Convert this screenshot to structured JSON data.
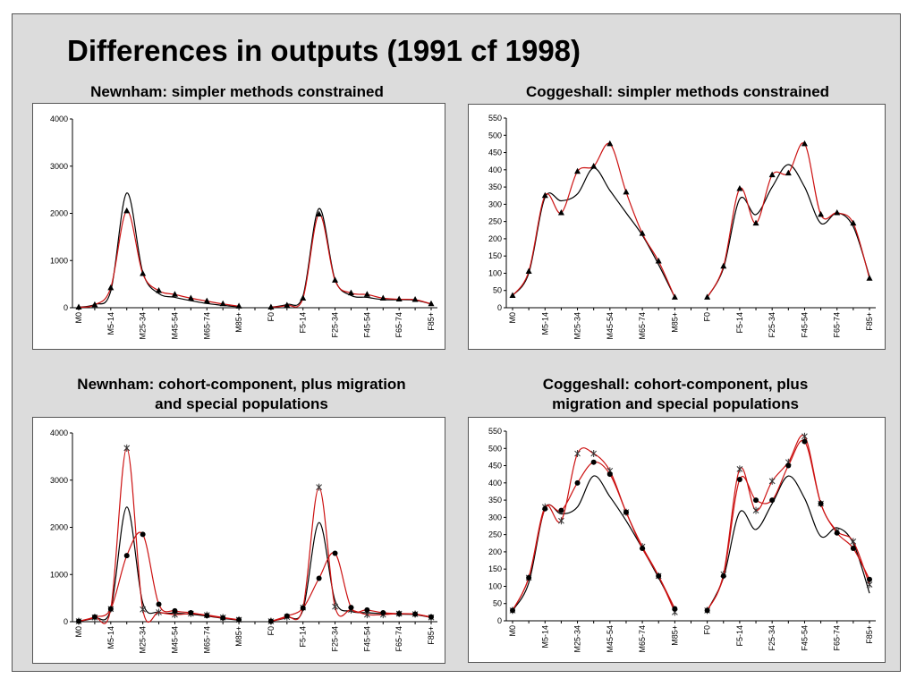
{
  "title": "Differences in outputs (1991 cf 1998)",
  "colors": {
    "black_series": "#000000",
    "red_series": "#cc1111",
    "background": "#dcdcdc"
  },
  "chart_data": [
    {
      "type": "line",
      "title": "Newnham: simpler methods constrained",
      "categories": [
        "M0",
        "",
        "M5-14",
        "",
        "M25-34",
        "",
        "M45-54",
        "",
        "M65-74",
        "",
        "M85+",
        "",
        "F0",
        "",
        "F5-14",
        "",
        "F25-34",
        "",
        "F45-54",
        "",
        "F65-74",
        "",
        "F85+"
      ],
      "ylim": [
        0,
        4000
      ],
      "yticks": [
        0,
        1000,
        2000,
        3000,
        4000
      ],
      "series": [
        {
          "color": "#000000",
          "marker": "none",
          "values": [
            10,
            70,
            350,
            2430,
            750,
            300,
            220,
            150,
            90,
            50,
            20,
            null,
            10,
            70,
            250,
            2100,
            600,
            260,
            220,
            170,
            170,
            160,
            80
          ]
        },
        {
          "color": "#cc1111",
          "marker": "triangle",
          "values": [
            10,
            60,
            420,
            2050,
            720,
            360,
            280,
            200,
            140,
            80,
            30,
            null,
            10,
            50,
            200,
            1980,
            580,
            310,
            280,
            200,
            180,
            170,
            80
          ]
        }
      ]
    },
    {
      "type": "line",
      "title": "Coggeshall: simpler methods constrained",
      "categories": [
        "M0",
        "",
        "M5-14",
        "",
        "M25-34",
        "",
        "M45-54",
        "",
        "M65-74",
        "",
        "M85+",
        "",
        "F0",
        "",
        "F5-14",
        "",
        "F25-34",
        "",
        "F45-54",
        "",
        "F65-74",
        "",
        "F85+"
      ],
      "ylim": [
        0,
        550
      ],
      "yticks": [
        0,
        50,
        100,
        150,
        200,
        250,
        300,
        350,
        400,
        450,
        500,
        550
      ],
      "series": [
        {
          "color": "#000000",
          "marker": "none",
          "values": [
            35,
            100,
            320,
            310,
            330,
            405,
            340,
            275,
            210,
            125,
            30,
            null,
            30,
            115,
            315,
            270,
            350,
            415,
            350,
            245,
            275,
            235,
            90
          ]
        },
        {
          "color": "#cc1111",
          "marker": "triangle",
          "values": [
            35,
            105,
            325,
            275,
            395,
            410,
            475,
            335,
            215,
            135,
            30,
            null,
            30,
            120,
            345,
            245,
            385,
            390,
            475,
            270,
            275,
            245,
            85
          ]
        }
      ]
    },
    {
      "type": "line",
      "title": "Newnham: cohort-component, plus migration and special populations",
      "categories": [
        "M0",
        "",
        "M5-14",
        "",
        "M25-34",
        "",
        "M45-54",
        "",
        "M65-74",
        "",
        "M85+",
        "",
        "F0",
        "",
        "F5-14",
        "",
        "F25-34",
        "",
        "F45-54",
        "",
        "F65-74",
        "",
        "F85+"
      ],
      "ylim": [
        0,
        4000
      ],
      "yticks": [
        0,
        1000,
        2000,
        3000,
        4000
      ],
      "series": [
        {
          "color": "#000000",
          "marker": "none",
          "values": [
            10,
            80,
            260,
            2430,
            400,
            200,
            180,
            160,
            120,
            70,
            30,
            null,
            10,
            90,
            250,
            2100,
            450,
            220,
            190,
            170,
            160,
            150,
            90
          ]
        },
        {
          "color": "#cc1111",
          "marker": "x",
          "values": [
            10,
            90,
            270,
            3680,
            260,
            200,
            150,
            170,
            140,
            90,
            40,
            null,
            10,
            100,
            300,
            2850,
            320,
            250,
            150,
            150,
            170,
            160,
            90
          ]
        },
        {
          "color": "#cc1111",
          "marker": "dot",
          "values": [
            10,
            100,
            270,
            1400,
            1850,
            370,
            230,
            190,
            130,
            80,
            40,
            null,
            10,
            120,
            290,
            920,
            1450,
            300,
            250,
            190,
            170,
            160,
            100
          ]
        }
      ]
    },
    {
      "type": "line",
      "title": "Coggeshall: cohort-component, plus migration and special populations",
      "categories": [
        "M0",
        "",
        "M5-14",
        "",
        "M25-34",
        "",
        "M45-54",
        "",
        "M65-74",
        "",
        "M85+",
        "",
        "F0",
        "",
        "F5-14",
        "",
        "F25-34",
        "",
        "F45-54",
        "",
        "F65-74",
        "",
        "F85+"
      ],
      "ylim": [
        0,
        550
      ],
      "yticks": [
        0,
        50,
        100,
        150,
        200,
        250,
        300,
        350,
        400,
        450,
        500,
        550
      ],
      "series": [
        {
          "color": "#000000",
          "marker": "none",
          "values": [
            30,
            110,
            325,
            310,
            330,
            420,
            360,
            290,
            210,
            125,
            35,
            null,
            30,
            125,
            315,
            265,
            340,
            420,
            355,
            245,
            270,
            225,
            80
          ]
        },
        {
          "color": "#cc1111",
          "marker": "x",
          "values": [
            30,
            125,
            330,
            290,
            485,
            485,
            435,
            315,
            215,
            130,
            25,
            null,
            30,
            135,
            440,
            320,
            405,
            460,
            535,
            340,
            260,
            230,
            105
          ]
        },
        {
          "color": "#cc1111",
          "marker": "dot",
          "values": [
            30,
            125,
            325,
            320,
            400,
            460,
            425,
            315,
            210,
            130,
            35,
            null,
            30,
            130,
            410,
            350,
            350,
            450,
            520,
            340,
            255,
            210,
            120
          ]
        }
      ]
    }
  ]
}
